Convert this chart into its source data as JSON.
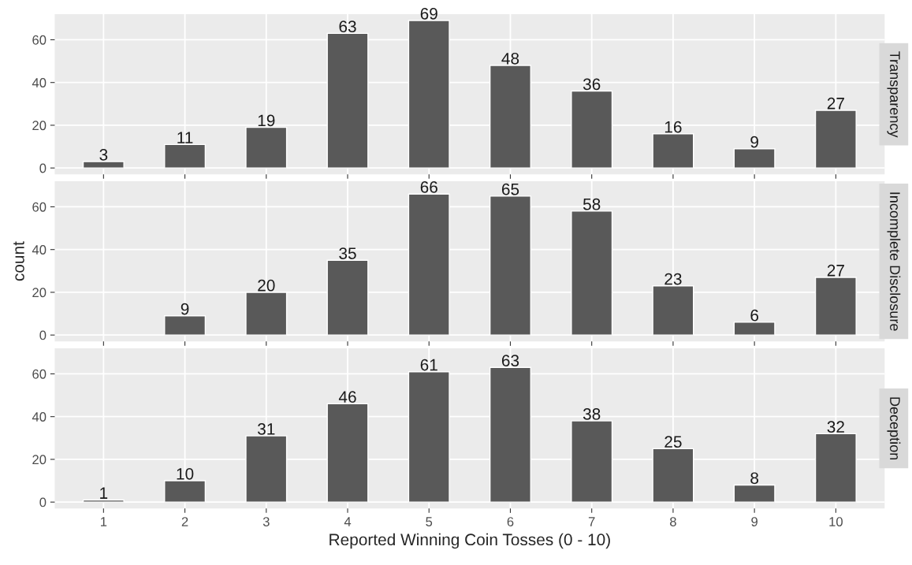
{
  "chart_data": [
    {
      "type": "bar",
      "title": "Transparency",
      "categories": [
        "1",
        "2",
        "3",
        "4",
        "5",
        "6",
        "7",
        "8",
        "9",
        "10"
      ],
      "values": [
        3,
        11,
        19,
        63,
        69,
        48,
        36,
        16,
        9,
        27
      ],
      "color": "#595959",
      "ylim": [
        -3,
        72
      ],
      "yticks": [
        0,
        20,
        40,
        60
      ],
      "grid": true,
      "data_labels": true,
      "tick_labels": "y"
    },
    {
      "type": "bar",
      "title": "Incomplete Disclosure",
      "ylabel": "count",
      "categories": [
        "1",
        "2",
        "3",
        "4",
        "5",
        "6",
        "7",
        "8",
        "9",
        "10"
      ],
      "values": [
        null,
        9,
        20,
        35,
        66,
        65,
        58,
        23,
        6,
        27
      ],
      "color": "#595959",
      "ylim": [
        -3,
        72
      ],
      "yticks": [
        0,
        20,
        40,
        60
      ],
      "grid": true,
      "data_labels": true,
      "tick_labels": "y"
    },
    {
      "type": "bar",
      "title": "Deception",
      "xlabel": "Reported Winning Coin Tosses (0 - 10)",
      "categories": [
        "1",
        "2",
        "3",
        "4",
        "5",
        "6",
        "7",
        "8",
        "9",
        "10"
      ],
      "values": [
        1,
        10,
        31,
        46,
        61,
        63,
        38,
        25,
        8,
        32
      ],
      "color": "#595959",
      "ylim": [
        -3,
        72
      ],
      "yticks": [
        0,
        20,
        40,
        60
      ],
      "grid": true,
      "data_labels": true
    }
  ]
}
